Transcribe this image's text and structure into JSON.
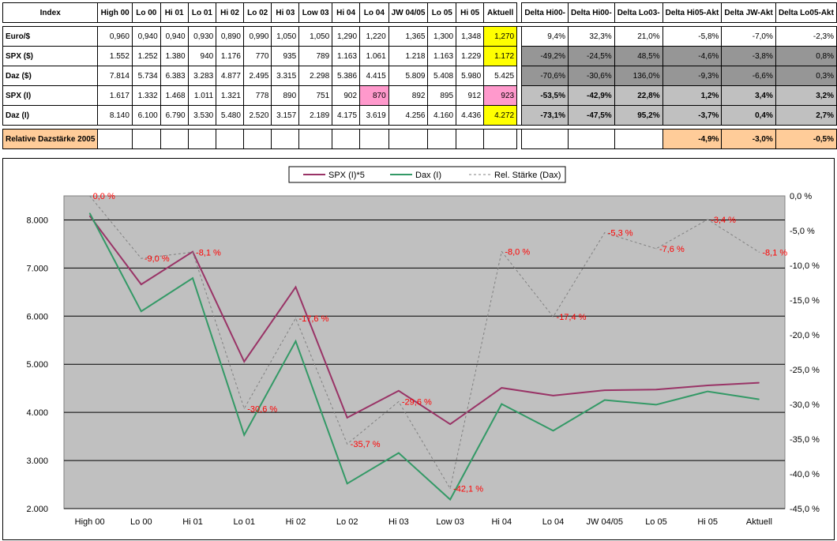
{
  "table": {
    "headers": [
      "Index",
      "High 00",
      "Lo 00",
      "Hi 01",
      "Lo 01",
      "Hi 02",
      "Lo 02",
      "Hi 03",
      "Low 03",
      "Hi 04",
      "Lo 04",
      "JW 04/05",
      "Lo 05",
      "Hi 05",
      "Aktuell"
    ],
    "delta_headers": [
      "Delta Hi00-",
      "Delta Hi00-",
      "Delta Lo03-",
      "Delta Hi05-Akt",
      "Delta JW-Akt",
      "Delta Lo05-Akt"
    ],
    "rows": [
      {
        "label": "Euro/$",
        "values": [
          "0,960",
          "0,940",
          "0,940",
          "0,930",
          "0,890",
          "0,990",
          "1,050",
          "1,050",
          "1,290",
          "1,220",
          "1,365",
          "1,300",
          "1,348",
          "1,270"
        ],
        "deltas": [
          "9,4%",
          "32,3%",
          "21,0%",
          "-5,8%",
          "-7,0%",
          "-2,3%"
        ]
      },
      {
        "label": "SPX ($)",
        "values": [
          "1.552",
          "1.252",
          "1.380",
          "940",
          "1.176",
          "770",
          "935",
          "789",
          "1.163",
          "1.061",
          "1.218",
          "1.163",
          "1.229",
          "1.172"
        ],
        "deltas": [
          "-49,2%",
          "-24,5%",
          "48,5%",
          "-4,6%",
          "-3,8%",
          "0,8%"
        ]
      },
      {
        "label": "Daz ($)",
        "values": [
          "7.814",
          "5.734",
          "6.383",
          "3.283",
          "4.877",
          "2.495",
          "3.315",
          "2.298",
          "5.386",
          "4.415",
          "5.809",
          "5.408",
          "5.980",
          "5.425"
        ],
        "deltas": [
          "-70,6%",
          "-30,6%",
          "136,0%",
          "-9,3%",
          "-6,6%",
          "0,3%"
        ]
      },
      {
        "label": "SPX (I)",
        "values": [
          "1.617",
          "1.332",
          "1.468",
          "1.011",
          "1.321",
          "778",
          "890",
          "751",
          "902",
          "870",
          "892",
          "895",
          "912",
          "923"
        ],
        "deltas": [
          "-53,5%",
          "-42,9%",
          "22,8%",
          "1,2%",
          "3,4%",
          "3,2%"
        ]
      },
      {
        "label": "Daz (I)",
        "values": [
          "8.140",
          "6.100",
          "6.790",
          "3.530",
          "5.480",
          "2.520",
          "3.157",
          "2.189",
          "4.175",
          "3.619",
          "4.256",
          "4.160",
          "4.436",
          "4.272"
        ],
        "deltas": [
          "-73,1%",
          "-47,5%",
          "95,2%",
          "-3,7%",
          "0,4%",
          "2,7%"
        ]
      }
    ],
    "relative": {
      "label": "Relative Dazstärke 2005",
      "values": [
        "-4,9%",
        "-3,0%",
        "-0,5%"
      ]
    },
    "colors": {
      "yellow": "#ffff00",
      "pink": "#ff99cc",
      "dark_gray": "#969696",
      "light_gray": "#c0c0c0",
      "orange": "#ffcc99"
    }
  },
  "chart_data": {
    "type": "line",
    "categories": [
      "High 00",
      "Lo 00",
      "Hi 01",
      "Lo 01",
      "Hi 02",
      "Lo 02",
      "Hi 03",
      "Low 03",
      "Hi 04",
      "Lo 04",
      "JW 04/05",
      "Lo 05",
      "Hi 05",
      "Aktuell"
    ],
    "series": [
      {
        "name": "SPX (I)*5",
        "axis": "left",
        "color": "#993366",
        "values": [
          8085,
          6660,
          7340,
          5055,
          6605,
          3890,
          4450,
          3755,
          4510,
          4350,
          4460,
          4475,
          4560,
          4615
        ]
      },
      {
        "name": "Dax (I)",
        "axis": "left",
        "color": "#339966",
        "values": [
          8140,
          6100,
          6790,
          3530,
          5480,
          2520,
          3157,
          2189,
          4175,
          3619,
          4256,
          4160,
          4436,
          4272
        ]
      },
      {
        "name": "Rel. Stärke (Dax)",
        "axis": "right",
        "color": "#808080",
        "dashed": true,
        "values": [
          0,
          -9.0,
          -8.1,
          -30.6,
          -17.6,
          -35.7,
          -29.6,
          -42.1,
          -8.0,
          -17.4,
          -5.3,
          -7.6,
          -3.4,
          -8.1
        ],
        "labels": [
          "0,0  %",
          "-9,0  %",
          "-8,1  %",
          "-30,6  %",
          "-17,6  %",
          "-35,7  %",
          "-29,6  %",
          "-42,1  %",
          "-8,0  %",
          "-17,4  %",
          "-5,3  %",
          "-7,6  %",
          "-3,4  %",
          "-8,1  %"
        ]
      }
    ],
    "left_ticks": [
      "2.000",
      "3.000",
      "4.000",
      "5.000",
      "6.000",
      "7.000",
      "8.000"
    ],
    "right_ticks": [
      "0,0  %",
      "-5,0  %",
      "-10,0  %",
      "-15,0  %",
      "-20,0  %",
      "-25,0  %",
      "-30,0  %",
      "-35,0  %",
      "-40,0  %",
      "-45,0  %"
    ],
    "ylim_left": [
      2000,
      8500
    ],
    "ylim_right": [
      -45,
      0
    ],
    "plot_bg": "#c0c0c0",
    "label_color": "#ff0000",
    "legend": "top-center",
    "grid": true
  }
}
